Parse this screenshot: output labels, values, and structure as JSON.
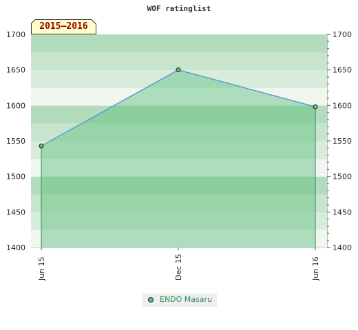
{
  "chart_data": {
    "type": "area",
    "title": "WOF ratinglist",
    "season": "2015–2016",
    "categories": [
      "Jun 15",
      "Dec 15",
      "Jun 16"
    ],
    "series": [
      {
        "name": "ENDO Masaru",
        "values": [
          1543,
          1650,
          1598
        ]
      }
    ],
    "ylim": [
      1400,
      1700
    ],
    "yticks": [
      1400,
      1450,
      1500,
      1550,
      1600,
      1650,
      1700
    ],
    "yticks_right": [
      1400,
      1450,
      1500,
      1550,
      1600,
      1650,
      1700
    ],
    "grid": true,
    "legend": "bottom-center",
    "colors": {
      "line": "#5b9bd5",
      "fill": "#5dbf7d",
      "marker": "#5dbf7d",
      "badge_bg": "#ffffcc",
      "badge_text": "#990000"
    }
  }
}
